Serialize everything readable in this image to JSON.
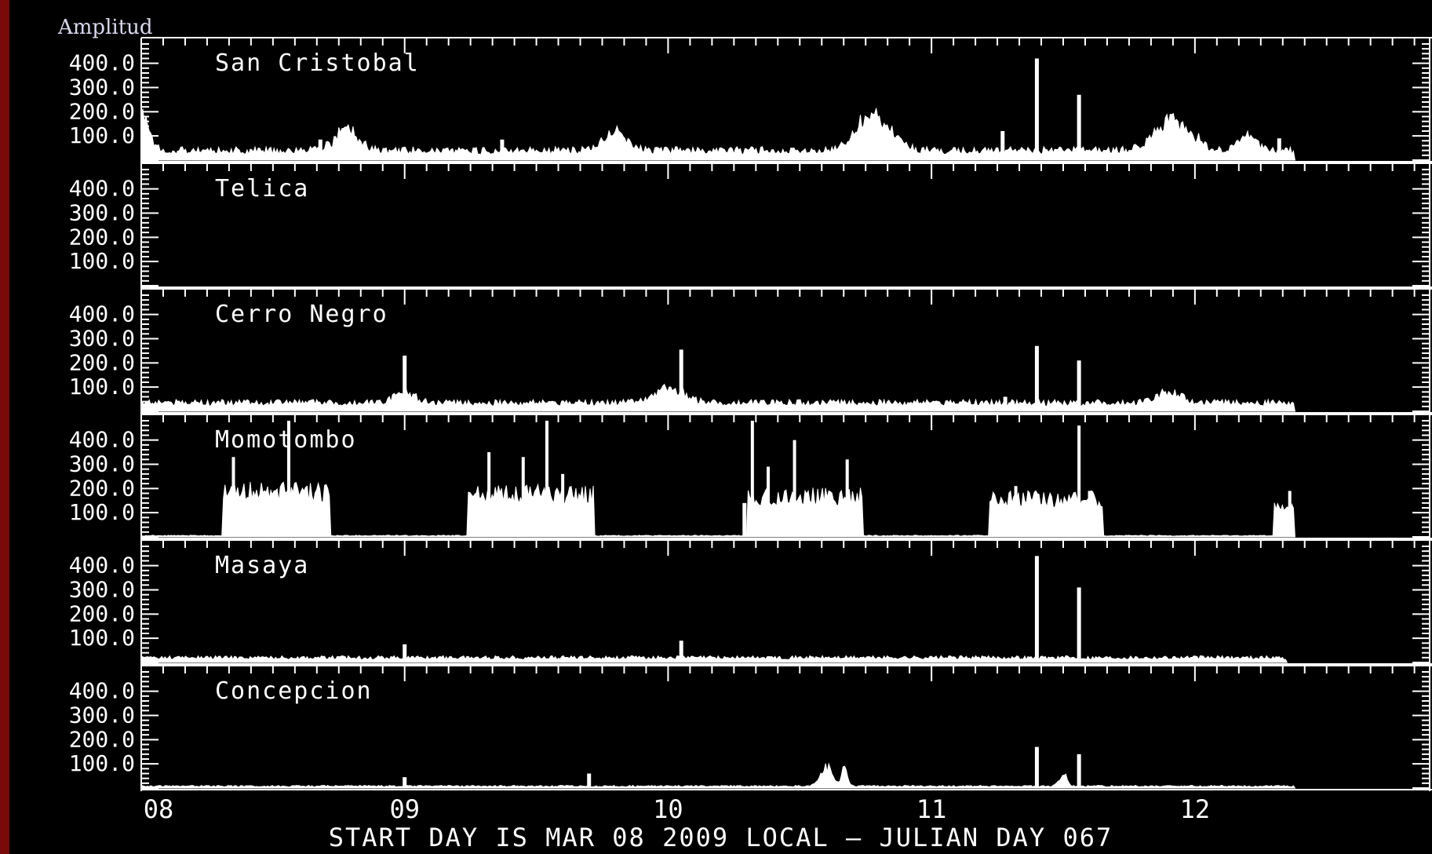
{
  "chart_data": {
    "type": "bar",
    "title": "",
    "ylabel": "Amplitud",
    "xlabel": "START DAY IS MAR 08 2009 LOCAL — JULIAN DAY 067",
    "x_ticks": [
      "08",
      "09",
      "10",
      "11",
      "12"
    ],
    "x_range": [
      8,
      12.9
    ],
    "y_ticks": [
      "400.0",
      "300.0",
      "200.0",
      "100.0"
    ],
    "ylim": [
      0,
      480
    ],
    "colors": {
      "background": "#000000",
      "foreground": "#ffffff",
      "frame": "#7a0a0a"
    },
    "series": [
      {
        "name": "San Cristobal",
        "baseline": 40,
        "bumps": [
          {
            "x": 8.0,
            "w": 0.04,
            "h": 180
          },
          {
            "x": 8.78,
            "w": 0.06,
            "h": 110
          },
          {
            "x": 9.8,
            "w": 0.06,
            "h": 95
          },
          {
            "x": 10.78,
            "w": 0.09,
            "h": 170
          },
          {
            "x": 11.92,
            "w": 0.09,
            "h": 150
          },
          {
            "x": 12.2,
            "w": 0.05,
            "h": 70
          }
        ],
        "spikes": [
          {
            "x": 8.68,
            "h": 85
          },
          {
            "x": 9.37,
            "h": 85
          },
          {
            "x": 11.27,
            "h": 120
          },
          {
            "x": 11.4,
            "h": 420
          },
          {
            "x": 11.56,
            "h": 270
          },
          {
            "x": 12.32,
            "h": 90
          }
        ],
        "end": 12.38
      },
      {
        "name": "Telica",
        "baseline": 0,
        "bumps": [],
        "spikes": [],
        "end": 8.0
      },
      {
        "name": "Cerro Negro",
        "baseline": 35,
        "bumps": [
          {
            "x": 9.0,
            "w": 0.05,
            "h": 60
          },
          {
            "x": 10.0,
            "w": 0.08,
            "h": 65
          },
          {
            "x": 11.9,
            "w": 0.06,
            "h": 55
          }
        ],
        "spikes": [
          {
            "x": 9.0,
            "h": 230
          },
          {
            "x": 10.05,
            "h": 255
          },
          {
            "x": 11.4,
            "h": 270
          },
          {
            "x": 11.56,
            "h": 210
          },
          {
            "x": 11.28,
            "h": 60
          }
        ],
        "end": 12.38
      },
      {
        "name": "Momotombo",
        "baseline": 5,
        "blocks": [
          {
            "x0": 8.31,
            "x1": 8.72,
            "h": 190,
            "spikes": [
              {
                "x": 8.35,
                "h": 330
              },
              {
                "x": 8.56,
                "h": 480
              }
            ]
          },
          {
            "x0": 9.24,
            "x1": 9.72,
            "h": 180,
            "spikes": [
              {
                "x": 9.32,
                "h": 350
              },
              {
                "x": 9.45,
                "h": 330
              },
              {
                "x": 9.54,
                "h": 480
              },
              {
                "x": 9.6,
                "h": 260
              }
            ]
          },
          {
            "x0": 10.3,
            "x1": 10.74,
            "h": 170,
            "spikes": [
              {
                "x": 10.32,
                "h": 480
              },
              {
                "x": 10.48,
                "h": 400
              },
              {
                "x": 10.38,
                "h": 290
              },
              {
                "x": 10.68,
                "h": 320
              }
            ]
          },
          {
            "x0": 11.22,
            "x1": 11.65,
            "h": 160,
            "spikes": [
              {
                "x": 11.32,
                "h": 210
              },
              {
                "x": 11.56,
                "h": 460
              },
              {
                "x": 11.6,
                "h": 190
              }
            ]
          },
          {
            "x0": 12.3,
            "x1": 12.38,
            "h": 120,
            "spikes": [
              {
                "x": 12.36,
                "h": 190
              }
            ]
          }
        ],
        "spikes": [
          {
            "x": 10.29,
            "h": 140
          }
        ],
        "end": 12.38
      },
      {
        "name": "Masaya",
        "baseline": 20,
        "bumps": [],
        "spikes": [
          {
            "x": 9.0,
            "h": 75
          },
          {
            "x": 10.05,
            "h": 90
          },
          {
            "x": 11.4,
            "h": 440
          },
          {
            "x": 11.56,
            "h": 310
          }
        ],
        "end": 12.35
      },
      {
        "name": "Concepcion",
        "baseline": 8,
        "bumps": [
          {
            "x": 10.6,
            "w": 0.03,
            "h": 95
          },
          {
            "x": 10.67,
            "w": 0.015,
            "h": 110
          },
          {
            "x": 11.5,
            "w": 0.02,
            "h": 60
          }
        ],
        "spikes": [
          {
            "x": 9.0,
            "h": 45
          },
          {
            "x": 9.7,
            "h": 60
          },
          {
            "x": 11.4,
            "h": 170
          },
          {
            "x": 11.56,
            "h": 140
          }
        ],
        "end": 12.38
      }
    ]
  }
}
